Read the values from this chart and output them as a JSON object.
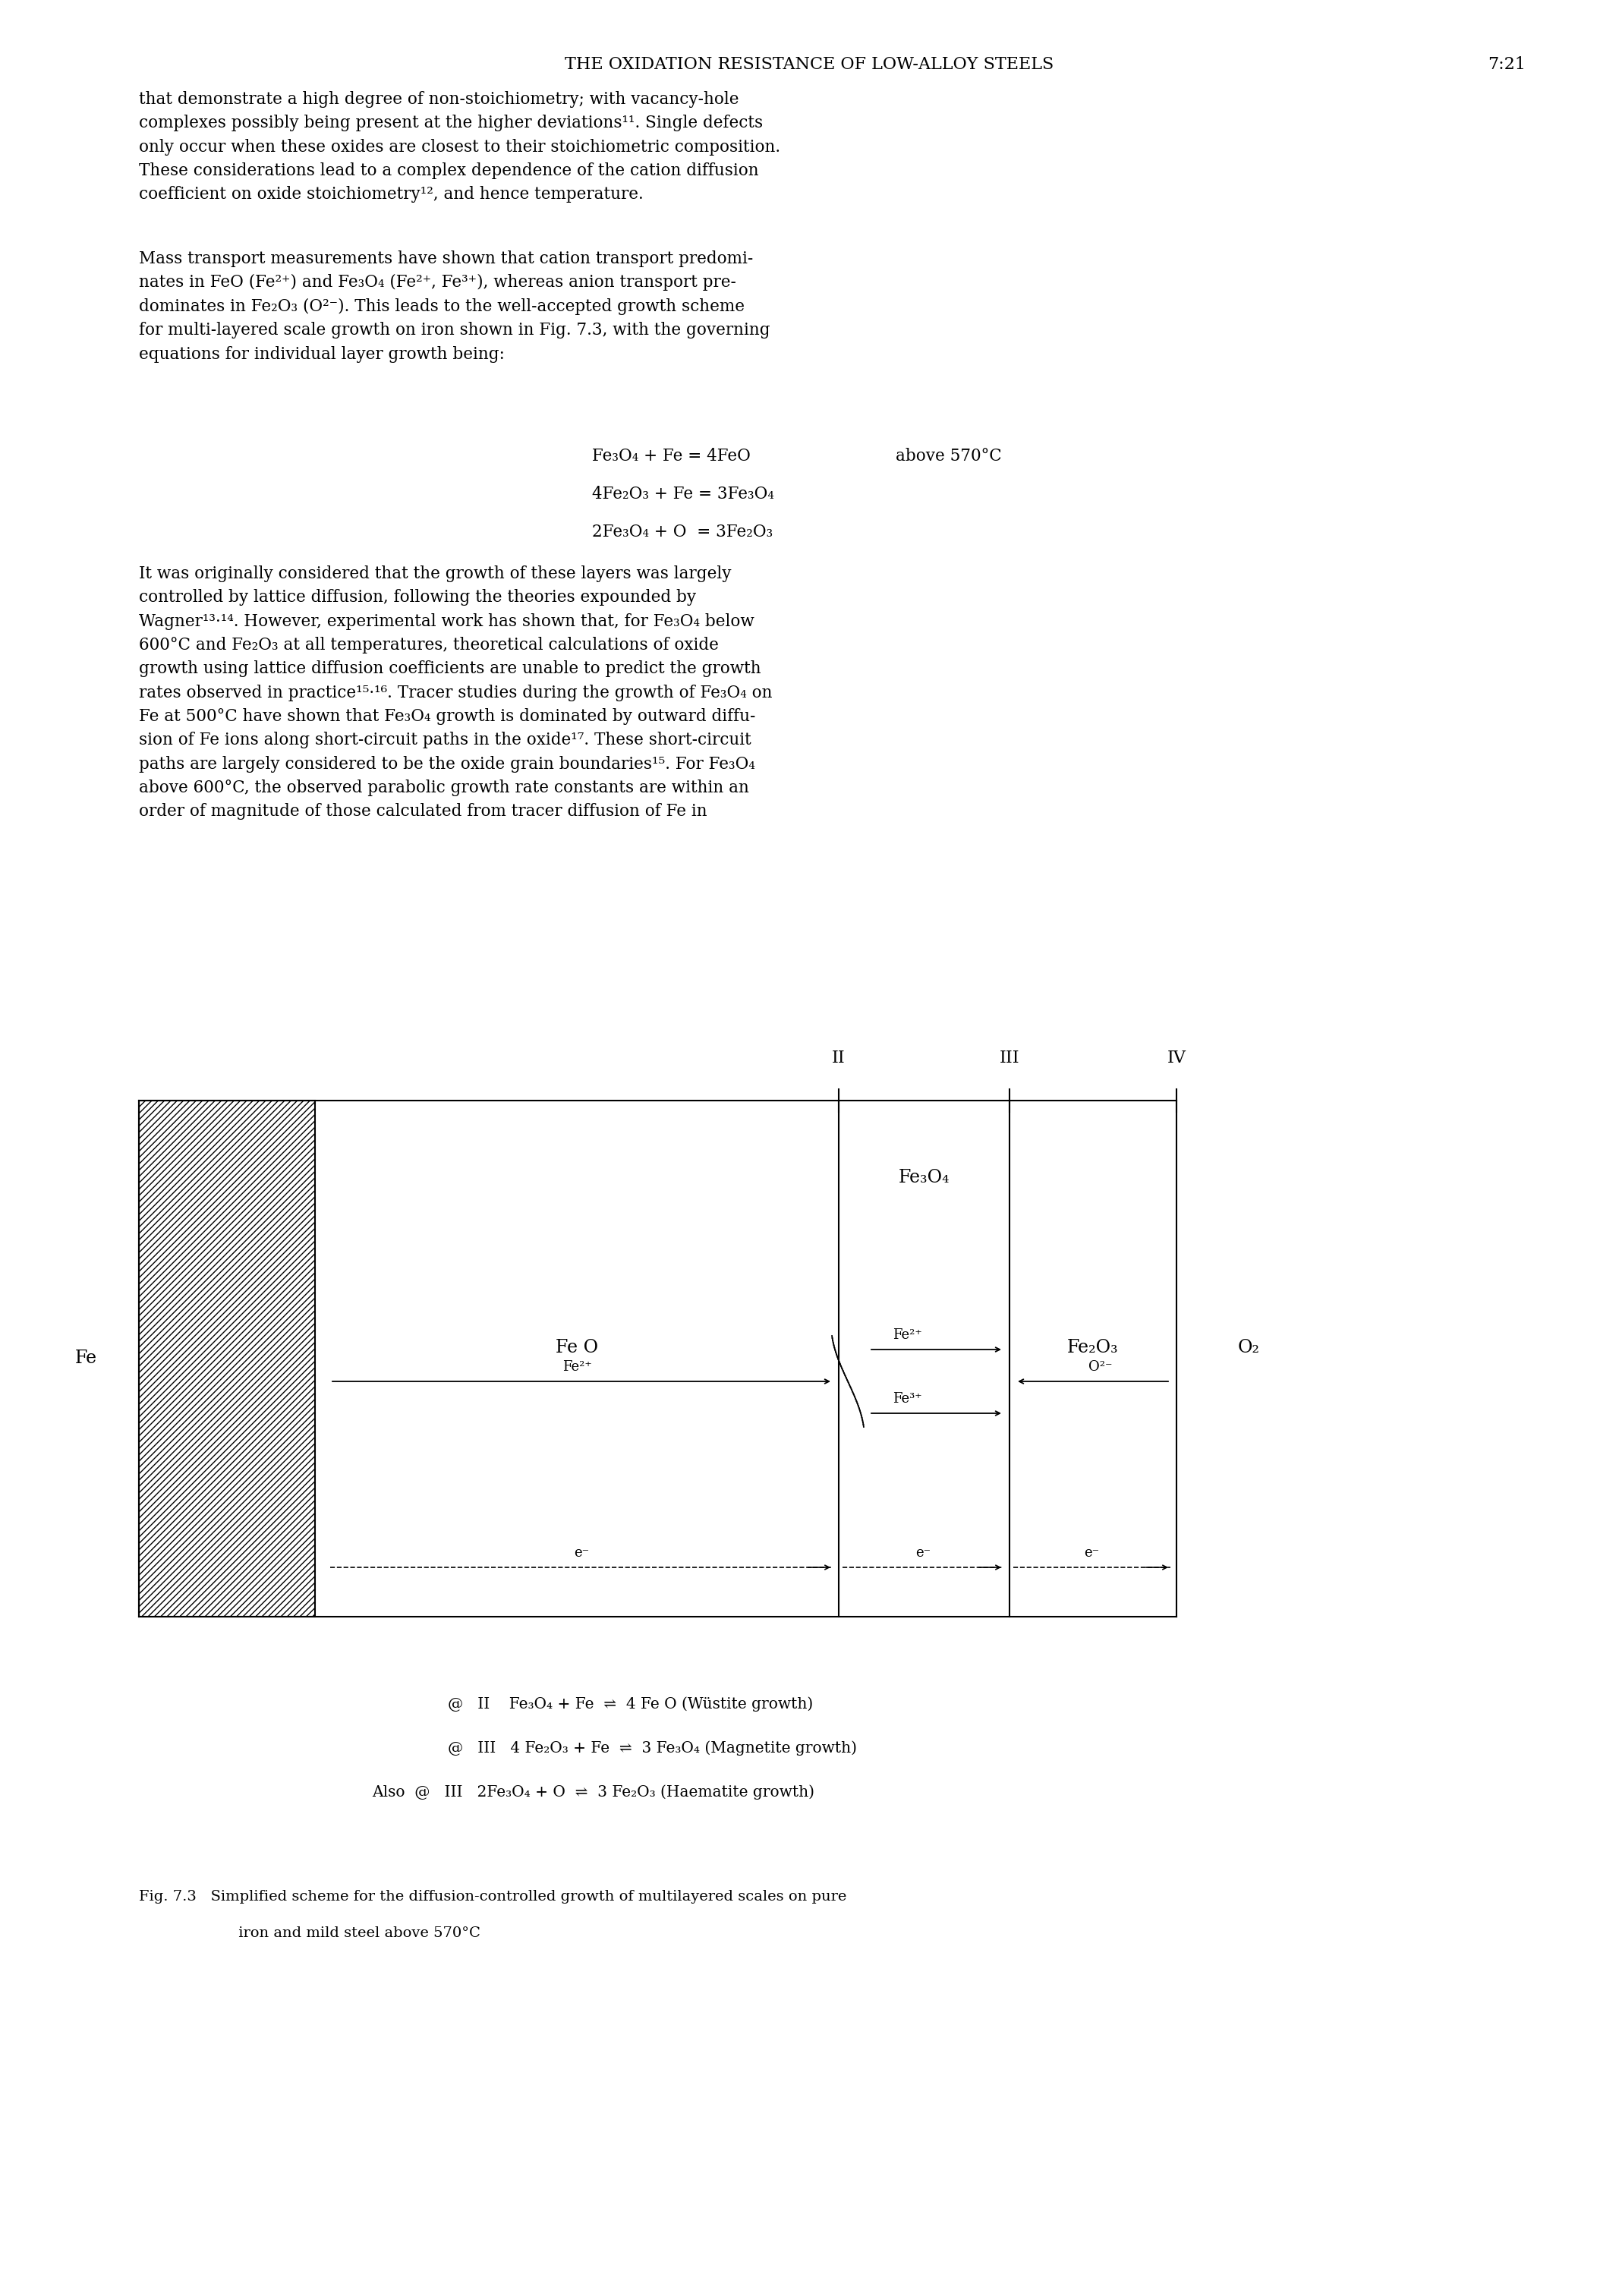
{
  "bg_color": "#ffffff",
  "header_text": "THE OXIDATION RESISTANCE OF LOW-ALLOY STEELS",
  "header_page": "7:21",
  "caption_line1": "Fig. 7.3   Simplified scheme for the diffusion-controlled growth of multilayered scales on pure",
  "caption_line2": "iron and mild steel above 570°C"
}
